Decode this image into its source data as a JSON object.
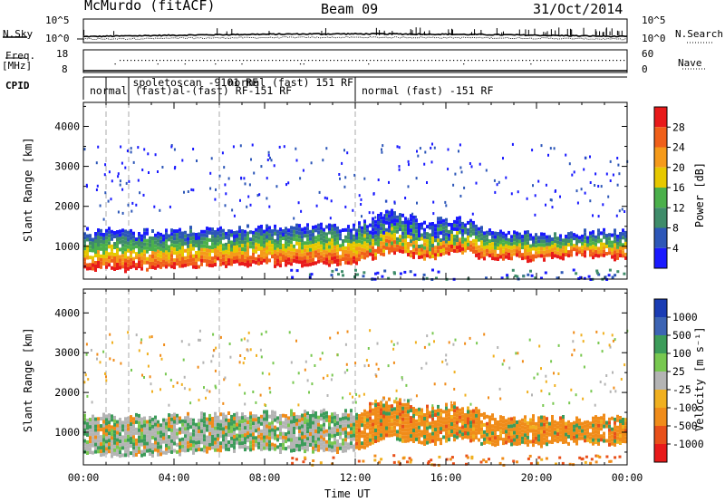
{
  "header": {
    "station": "McMurdo (fitACF)",
    "beam": "Beam 09",
    "date": "31/Oct/2014"
  },
  "side_labels": {
    "nsky": "N.Sky",
    "nsearch": "N.Search",
    "freq": "Freq.",
    "freq_unit": "[MHz]",
    "nave": "Nave",
    "cpid": "CPID"
  },
  "noise_axis": {
    "top": "10^5",
    "bottom": "10^0"
  },
  "freq_axis": {
    "top": "18",
    "bottom": "8"
  },
  "nave_axis": {
    "top": "60",
    "bottom": "0"
  },
  "cpid_labels": [
    {
      "text": "normal",
      "hour": 0.2,
      "row": 0
    },
    {
      "text": "spoletoscan -9101 RF",
      "hour": 2.1,
      "row": -1
    },
    {
      "text": "(fast)al-(fast) RF-151 RF",
      "hour": 2.2,
      "row": 0
    },
    {
      "text": "normal (fast) 151 RF",
      "hour": 6.3,
      "row": -1
    },
    {
      "text": "normal (fast) -151 RF",
      "hour": 12.2,
      "row": 0
    }
  ],
  "cpid_boundaries_hours": [
    1.0,
    2.0,
    6.0,
    12.0
  ],
  "ylabel": "Slant Range [km]",
  "xlabel": "Time UT",
  "x_tick_labels": [
    "00:00",
    "04:00",
    "08:00",
    "12:00",
    "16:00",
    "20:00",
    "00:00"
  ],
  "y_tick_labels": [
    "1000",
    "2000",
    "3000",
    "4000"
  ],
  "colors": {
    "power": [
      "#1a1aff",
      "#2d57b8",
      "#3f8c6a",
      "#4bb04b",
      "#e6c800",
      "#f59a1a",
      "#f0601a",
      "#e81a1a"
    ],
    "velocity": [
      "#e81a1a",
      "#e8501a",
      "#f08c1a",
      "#f0b020",
      "#b4b4b4",
      "#78c850",
      "#3c9c5a",
      "#3c64b4",
      "#1a3cb4"
    ]
  },
  "chart_data": [
    {
      "type": "heatmap",
      "panel": "power",
      "colorbar_label": "Power [dB]",
      "colorbar_ticks": [
        "4",
        "8",
        "12",
        "16",
        "20",
        "24",
        "28"
      ],
      "xlim_hours": [
        0,
        24
      ],
      "ylim_km": [
        180,
        4600
      ],
      "scatter_band_km": {
        "hours": [
          0,
          2,
          4,
          6,
          8,
          10,
          12,
          13.5,
          15,
          16.5,
          18,
          20,
          22,
          24
        ],
        "bottom": [
          500,
          450,
          500,
          550,
          600,
          550,
          600,
          900,
          700,
          900,
          700,
          700,
          800,
          700
        ],
        "top": [
          1400,
          1400,
          1400,
          1450,
          1500,
          1500,
          1500,
          1900,
          1600,
          1700,
          1400,
          1350,
          1350,
          1400
        ]
      }
    },
    {
      "type": "heatmap",
      "panel": "velocity",
      "colorbar_label": "Velocity [m s⁻¹]",
      "colorbar_ticks": [
        "1000",
        "500",
        "100",
        "25",
        "-25",
        "-100",
        "-500",
        "-1000"
      ],
      "xlim_hours": [
        0,
        24
      ],
      "ylim_km": [
        180,
        4600
      ]
    }
  ]
}
